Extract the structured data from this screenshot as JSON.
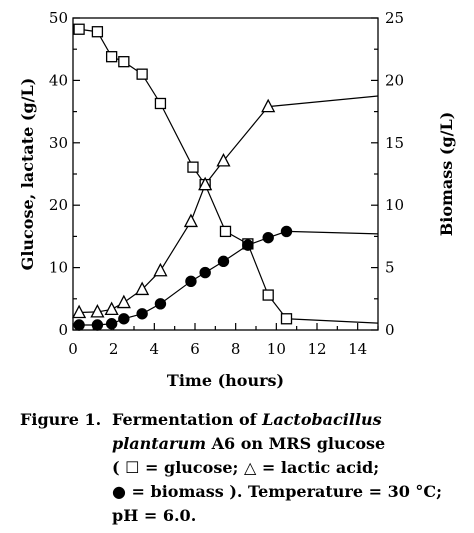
{
  "chart_data": {
    "type": "line",
    "xlabel": "Time (hours)",
    "ylabel_left": "Glucose, lactate (g/L)",
    "ylabel_right": "Biomass (g/L)",
    "xlim": [
      0,
      15
    ],
    "ylim_left": [
      0,
      50
    ],
    "ylim_right": [
      0,
      25
    ],
    "x_ticks": [
      0,
      2,
      4,
      6,
      8,
      10,
      12,
      14
    ],
    "y_left_ticks": [
      0,
      10,
      20,
      30,
      40,
      50
    ],
    "y_right_ticks": [
      0,
      5,
      10,
      15,
      20,
      25
    ],
    "grid": false,
    "series": [
      {
        "marker": "open-square",
        "axis": "left",
        "x": [
          0.3,
          1.2,
          1.9,
          2.5,
          3.4,
          4.3,
          5.9,
          6.5,
          7.5,
          8.6,
          9.6,
          10.5,
          15
        ],
        "y": [
          48.2,
          47.8,
          43.8,
          43.0,
          41.0,
          36.3,
          26.1,
          23.3,
          15.8,
          13.8,
          5.6,
          1.8,
          1.1
        ],
        "marker_count": 12
      },
      {
        "marker": "open-triangle",
        "axis": "left",
        "x": [
          0.3,
          1.2,
          1.9,
          2.5,
          3.4,
          4.3,
          5.8,
          6.5,
          7.4,
          9.6,
          15
        ],
        "y": [
          2.8,
          2.9,
          3.3,
          4.4,
          6.5,
          9.5,
          17.4,
          23.3,
          27.1,
          35.8,
          37.5
        ],
        "marker_count": 10
      },
      {
        "marker": "filled-circle",
        "axis": "right",
        "x": [
          0.3,
          1.2,
          1.9,
          2.5,
          3.4,
          4.3,
          5.8,
          6.5,
          7.4,
          8.6,
          9.6,
          10.5,
          15
        ],
        "y": [
          0.4,
          0.4,
          0.5,
          0.9,
          1.3,
          2.1,
          3.9,
          4.6,
          5.5,
          6.8,
          7.4,
          7.9,
          7.7
        ],
        "marker_count": 12
      }
    ]
  },
  "caption": {
    "label": "Figure 1.",
    "line1_a": "Fermentation of ",
    "line1_b": "Lactobacillus",
    "line2_a": "plantarum",
    "line2_b": " A6 on MRS glucose",
    "line3_a": "( ",
    "line3_b": " = glucose; ",
    "line3_c": " = lactic acid;",
    "line4_b": " = biomass ).  Temperature = 30 °C;",
    "line5": "pH = 6.0.",
    "glyph_square": "☐",
    "glyph_triangle": "△",
    "glyph_circle": "●"
  }
}
